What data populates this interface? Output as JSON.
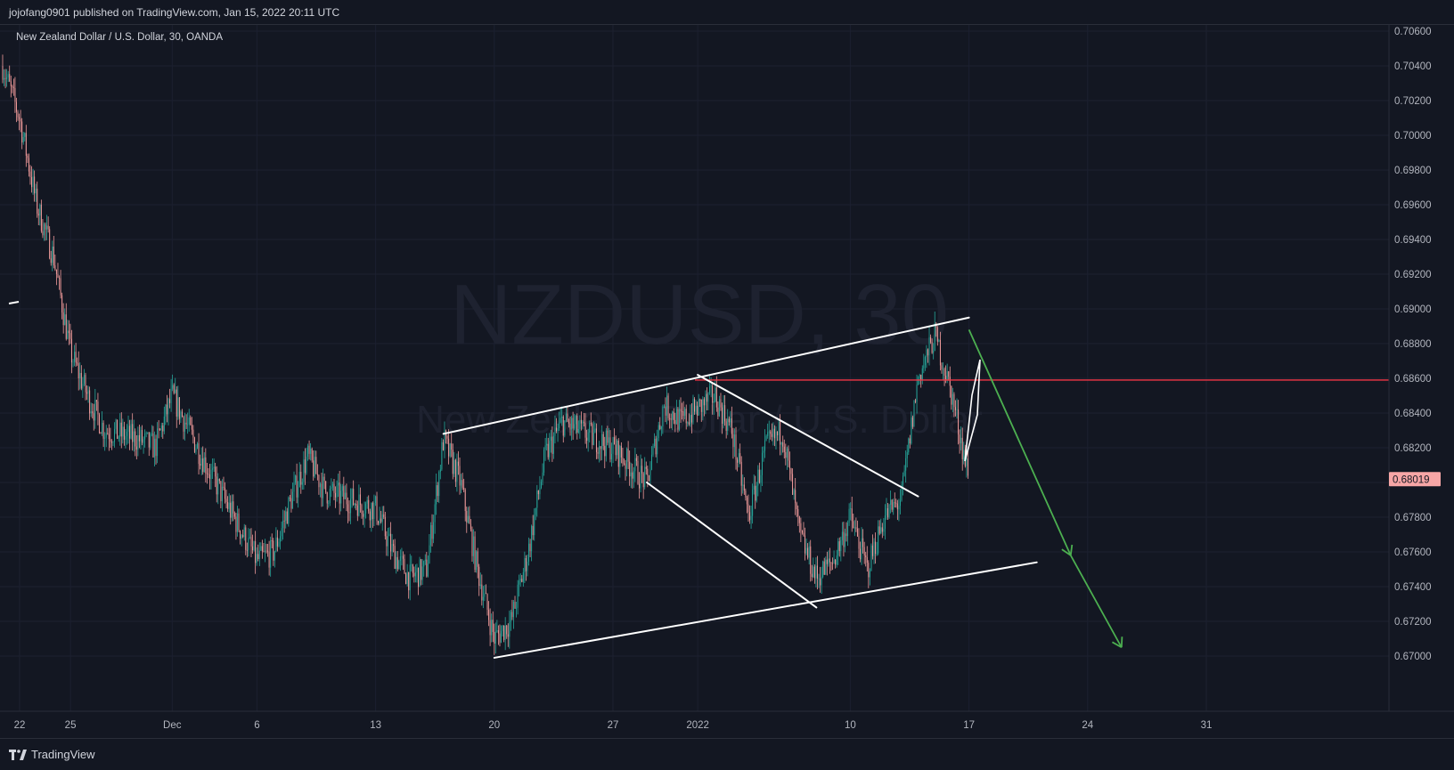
{
  "header": {
    "published_text": "jojofang0901 published on TradingView.com, Jan 15, 2022 20:11 UTC"
  },
  "footer": {
    "brand": "TradingView",
    "logo_icon": "tradingview-logo-icon"
  },
  "colors": {
    "background": "#131722",
    "grid": "#1c2030",
    "up_candle": "#26a69a",
    "down_candle": "#ef9a9a",
    "resistance_line": "#f23645",
    "projection_arrow": "#4caf50",
    "trendline": "#ffffff",
    "price_badge": "#f7a6a6"
  },
  "chart_data": {
    "type": "candlestick",
    "symbol_line": "New Zealand Dollar / U.S. Dollar, 30, OANDA",
    "watermark_symbol": "NZDUSD, 30",
    "watermark_name": "New Zealand Dollar / U.S. Dollar",
    "ylim": [
      0.6685,
      0.7062
    ],
    "y_ticks": [
      "0.70600",
      "0.70400",
      "0.70200",
      "0.70000",
      "0.69800",
      "0.69600",
      "0.69400",
      "0.69200",
      "0.69000",
      "0.68800",
      "0.68600",
      "0.68400",
      "0.68200",
      "0.68000",
      "0.67800",
      "0.67600",
      "0.67400",
      "0.67200",
      "0.67000"
    ],
    "y_tick_values": [
      0.706,
      0.704,
      0.702,
      0.7,
      0.698,
      0.696,
      0.694,
      0.692,
      0.69,
      0.688,
      0.686,
      0.684,
      0.682,
      0.68,
      0.678,
      0.676,
      0.674,
      0.672,
      0.67
    ],
    "x_ticks": [
      {
        "label": "22",
        "date": "2021-11-22"
      },
      {
        "label": "25",
        "date": "2021-11-25"
      },
      {
        "label": "Dec",
        "date": "2021-12-01"
      },
      {
        "label": "6",
        "date": "2021-12-06"
      },
      {
        "label": "13",
        "date": "2021-12-13"
      },
      {
        "label": "20",
        "date": "2021-12-20"
      },
      {
        "label": "27",
        "date": "2021-12-27"
      },
      {
        "label": "2022",
        "date": "2022-01-01"
      },
      {
        "label": "10",
        "date": "2022-01-10"
      },
      {
        "label": "17",
        "date": "2022-01-17"
      },
      {
        "label": "24",
        "date": "2022-01-24"
      },
      {
        "label": "31",
        "date": "2022-01-31"
      }
    ],
    "last_price": "0.68019",
    "price_path": [
      [
        "2021-11-21",
        0.704
      ],
      [
        "2021-11-22",
        0.701
      ],
      [
        "2021-11-23",
        0.696
      ],
      [
        "2021-11-24",
        0.693
      ],
      [
        "2021-11-25",
        0.6875
      ],
      [
        "2021-11-26",
        0.685
      ],
      [
        "2021-11-27",
        0.683
      ],
      [
        "2021-11-29",
        0.6825
      ],
      [
        "2021-11-30",
        0.682
      ],
      [
        "2021-12-01",
        0.685
      ],
      [
        "2021-12-02",
        0.683
      ],
      [
        "2021-12-03",
        0.681
      ],
      [
        "2021-12-06",
        0.6755
      ],
      [
        "2021-12-07",
        0.676
      ],
      [
        "2021-12-08",
        0.679
      ],
      [
        "2021-12-09",
        0.6815
      ],
      [
        "2021-12-10",
        0.6795
      ],
      [
        "2021-12-13",
        0.6785
      ],
      [
        "2021-12-14",
        0.676
      ],
      [
        "2021-12-15",
        0.6745
      ],
      [
        "2021-12-16",
        0.675
      ],
      [
        "2021-12-17",
        0.6825
      ],
      [
        "2021-12-18",
        0.68
      ],
      [
        "2021-12-19",
        0.675
      ],
      [
        "2021-12-20",
        0.671
      ],
      [
        "2021-12-21",
        0.672
      ],
      [
        "2021-12-22",
        0.676
      ],
      [
        "2021-12-23",
        0.6815
      ],
      [
        "2021-12-24",
        0.6835
      ],
      [
        "2021-12-27",
        0.682
      ],
      [
        "2021-12-28",
        0.681
      ],
      [
        "2021-12-29",
        0.68
      ],
      [
        "2021-12-30",
        0.6845
      ],
      [
        "2021-12-31",
        0.6835
      ],
      [
        "2022-01-02",
        0.685
      ],
      [
        "2022-01-03",
        0.683
      ],
      [
        "2022-01-04",
        0.678
      ],
      [
        "2022-01-05",
        0.682
      ],
      [
        "2022-01-06",
        0.683
      ],
      [
        "2022-01-07",
        0.677
      ],
      [
        "2022-01-08",
        0.6745
      ],
      [
        "2022-01-09",
        0.6755
      ],
      [
        "2022-01-10",
        0.678
      ],
      [
        "2022-01-11",
        0.675
      ],
      [
        "2022-01-12",
        0.678
      ],
      [
        "2022-01-13",
        0.679
      ],
      [
        "2022-01-14",
        0.686
      ],
      [
        "2022-01-15",
        0.6885
      ],
      [
        "2022-01-16",
        0.685
      ],
      [
        "2022-01-17",
        0.6802
      ]
    ],
    "annotations": {
      "resistance_level": 0.6859,
      "channel_upper": [
        [
          "2021-12-17",
          0.6828
        ],
        [
          "2022-01-17",
          0.6895
        ]
      ],
      "channel_lower": [
        [
          "2021-12-20",
          0.6699
        ],
        [
          "2022-01-21",
          0.6754
        ]
      ],
      "wedge_upper": [
        [
          "2022-01-01",
          0.6862
        ],
        [
          "2022-01-14",
          0.6792
        ]
      ],
      "wedge_lower": [
        [
          "2021-12-29",
          0.68
        ],
        [
          "2022-01-08",
          0.6728
        ]
      ],
      "projection_arrow": [
        [
          "2022-01-17",
          0.6888
        ],
        [
          "2022-01-23",
          0.6758
        ],
        [
          "2022-01-26",
          0.6705
        ]
      ]
    }
  }
}
